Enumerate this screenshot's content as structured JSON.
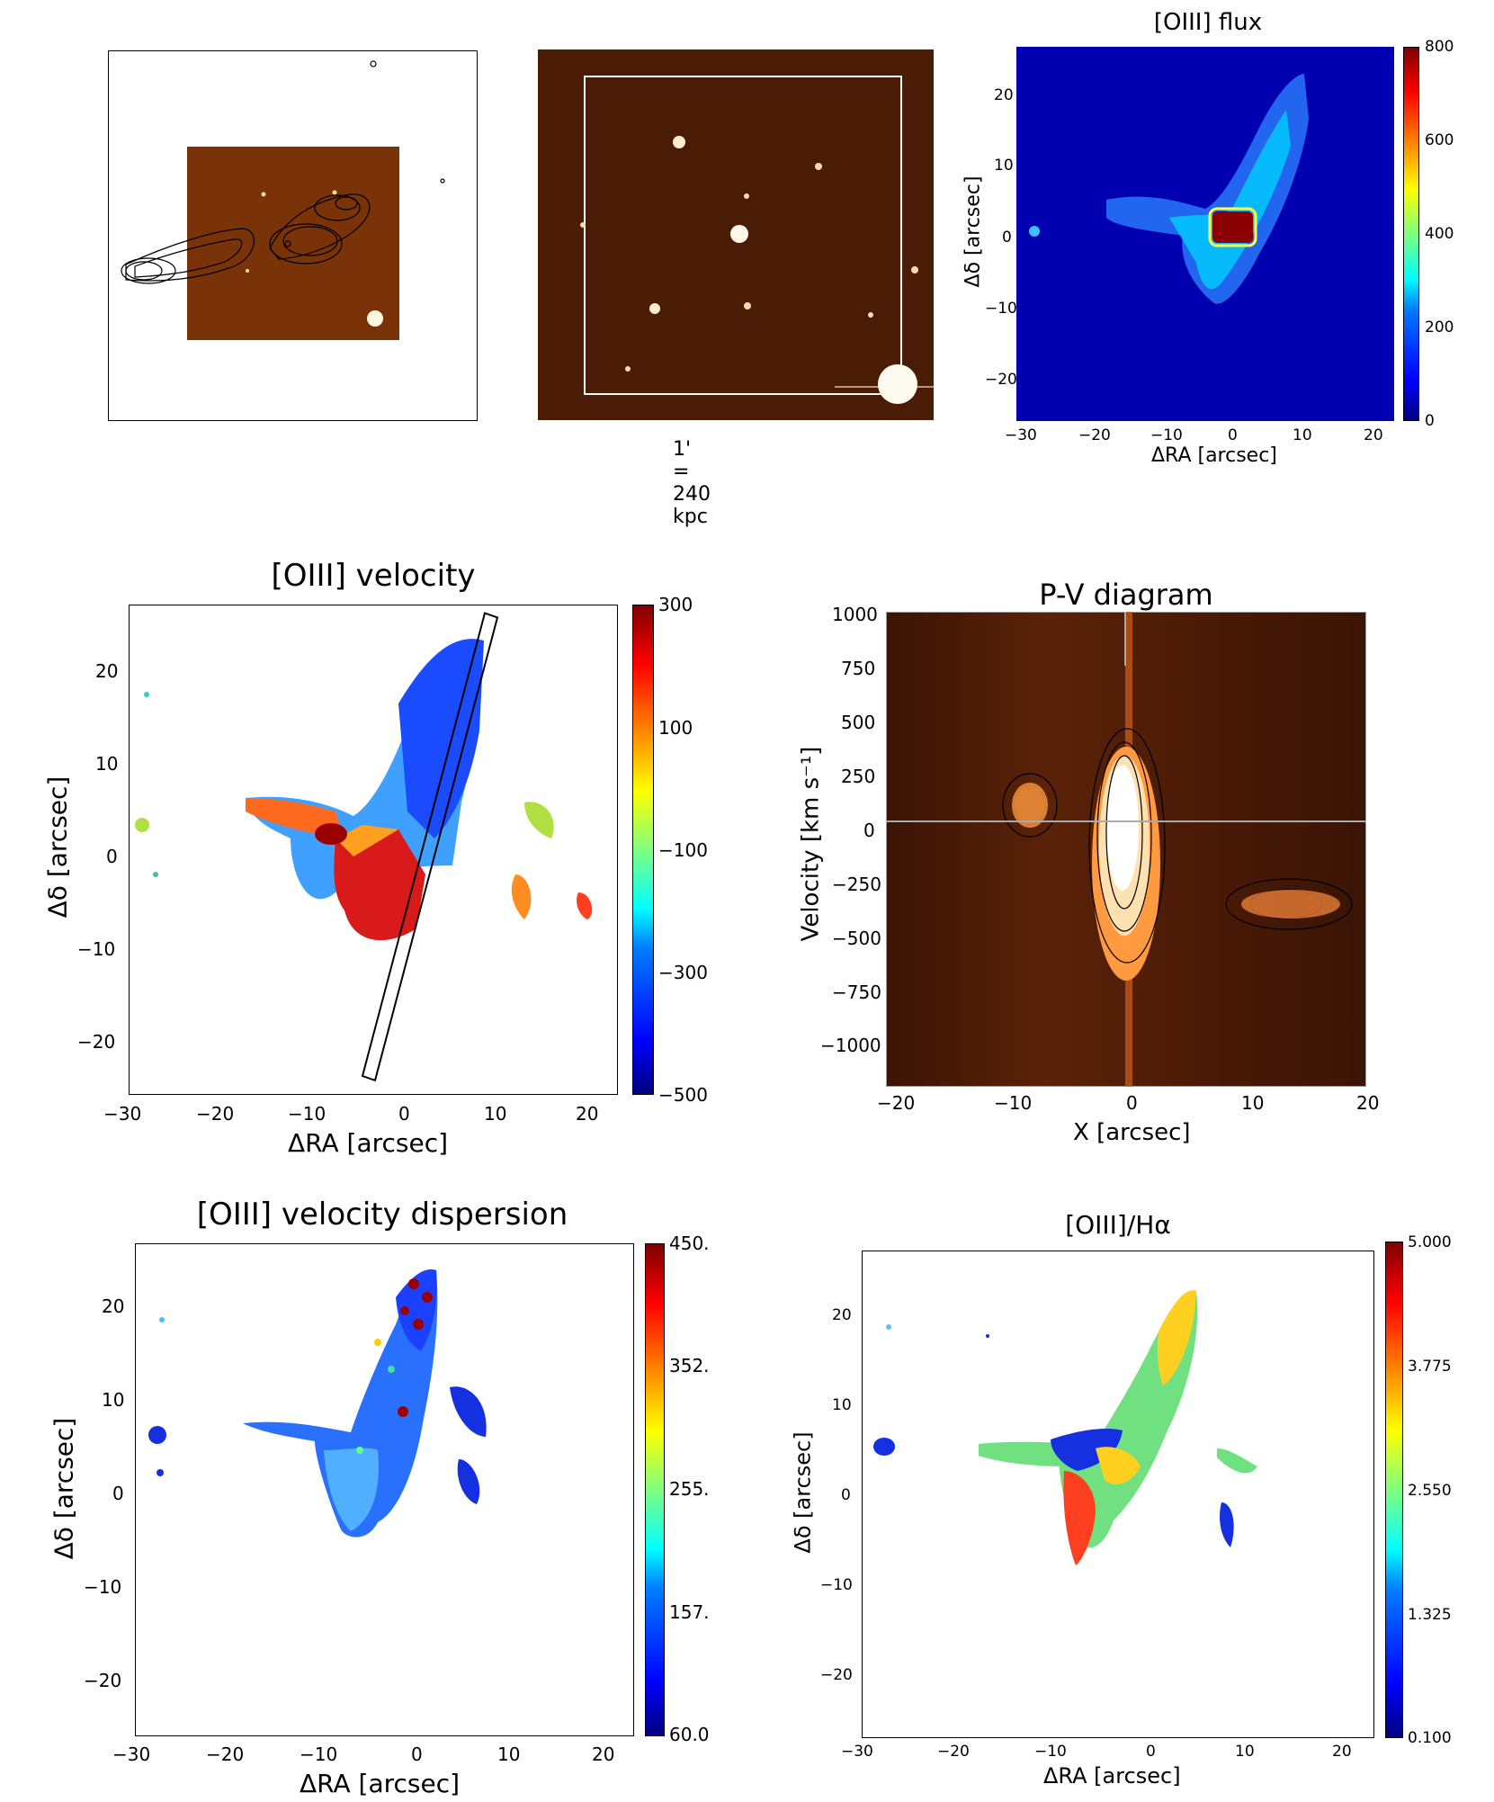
{
  "panel_a": {
    "name": "radio contour overlay"
  },
  "panel_b": {
    "scale_label": "1' = 240 kpc"
  },
  "chart_data": [
    {
      "type": "heatmap",
      "title": "[OIII] flux",
      "xlabel": "ΔRA [arcsec]",
      "ylabel": "Δδ [arcsec]",
      "xlim": [
        -30,
        23
      ],
      "ylim": [
        -26,
        27
      ],
      "xticks": [
        "−30",
        "−20",
        "−10",
        "0",
        "10",
        "20"
      ],
      "yticks": [
        "20",
        "10",
        "0",
        "−10",
        "−20"
      ],
      "colorbar_ticks": [
        "800",
        "600",
        "400",
        "200",
        "0"
      ],
      "colorbar_range": [
        0,
        800
      ]
    },
    {
      "type": "heatmap",
      "title": "[OIII] velocity",
      "xlabel": "ΔRA [arcsec]",
      "ylabel": "Δδ [arcsec]",
      "xlim": [
        -30,
        23
      ],
      "ylim": [
        -26,
        27
      ],
      "xticks": [
        "−30",
        "−20",
        "−10",
        "0",
        "10",
        "20"
      ],
      "yticks": [
        "20",
        "10",
        "0",
        "−10",
        "−20"
      ],
      "colorbar_ticks": [
        "300",
        "100",
        "−100",
        "−300",
        "−500"
      ],
      "colorbar_range": [
        -500,
        300
      ]
    },
    {
      "type": "heatmap",
      "title": "P-V diagram",
      "xlabel": "X [arcsec]",
      "ylabel": "Velocity [km s⁻¹]",
      "xlim": [
        -20,
        20
      ],
      "ylim": [
        -1150,
        1000
      ],
      "xticks": [
        "−20",
        "−10",
        "0",
        "10",
        "20"
      ],
      "yticks": [
        "1000",
        "750",
        "500",
        "250",
        "0",
        "−250",
        "−500",
        "−750",
        "−1000"
      ]
    },
    {
      "type": "heatmap",
      "title": "[OIII] velocity dispersion",
      "xlabel": "ΔRA [arcsec]",
      "ylabel": "Δδ [arcsec]",
      "xlim": [
        -30,
        23
      ],
      "ylim": [
        -26,
        27
      ],
      "xticks": [
        "−30",
        "−20",
        "−10",
        "0",
        "10",
        "20"
      ],
      "yticks": [
        "20",
        "10",
        "0",
        "−10",
        "−20"
      ],
      "colorbar_ticks": [
        "450.",
        "352.",
        "255.",
        "157.",
        "60.0"
      ],
      "colorbar_range": [
        60,
        450
      ]
    },
    {
      "type": "heatmap",
      "title": "[OIII]/Hα",
      "xlabel": "ΔRA [arcsec]",
      "ylabel": "Δδ [arcsec]",
      "xlim": [
        -30,
        23
      ],
      "ylim": [
        -26,
        27
      ],
      "xticks": [
        "−30",
        "−20",
        "−10",
        "0",
        "10",
        "20"
      ],
      "yticks": [
        "20",
        "10",
        "0",
        "−10",
        "−20"
      ],
      "colorbar_ticks": [
        "5.000",
        "3.775",
        "2.550",
        "1.325",
        "0.100"
      ],
      "colorbar_range": [
        0.1,
        5.0
      ]
    }
  ]
}
